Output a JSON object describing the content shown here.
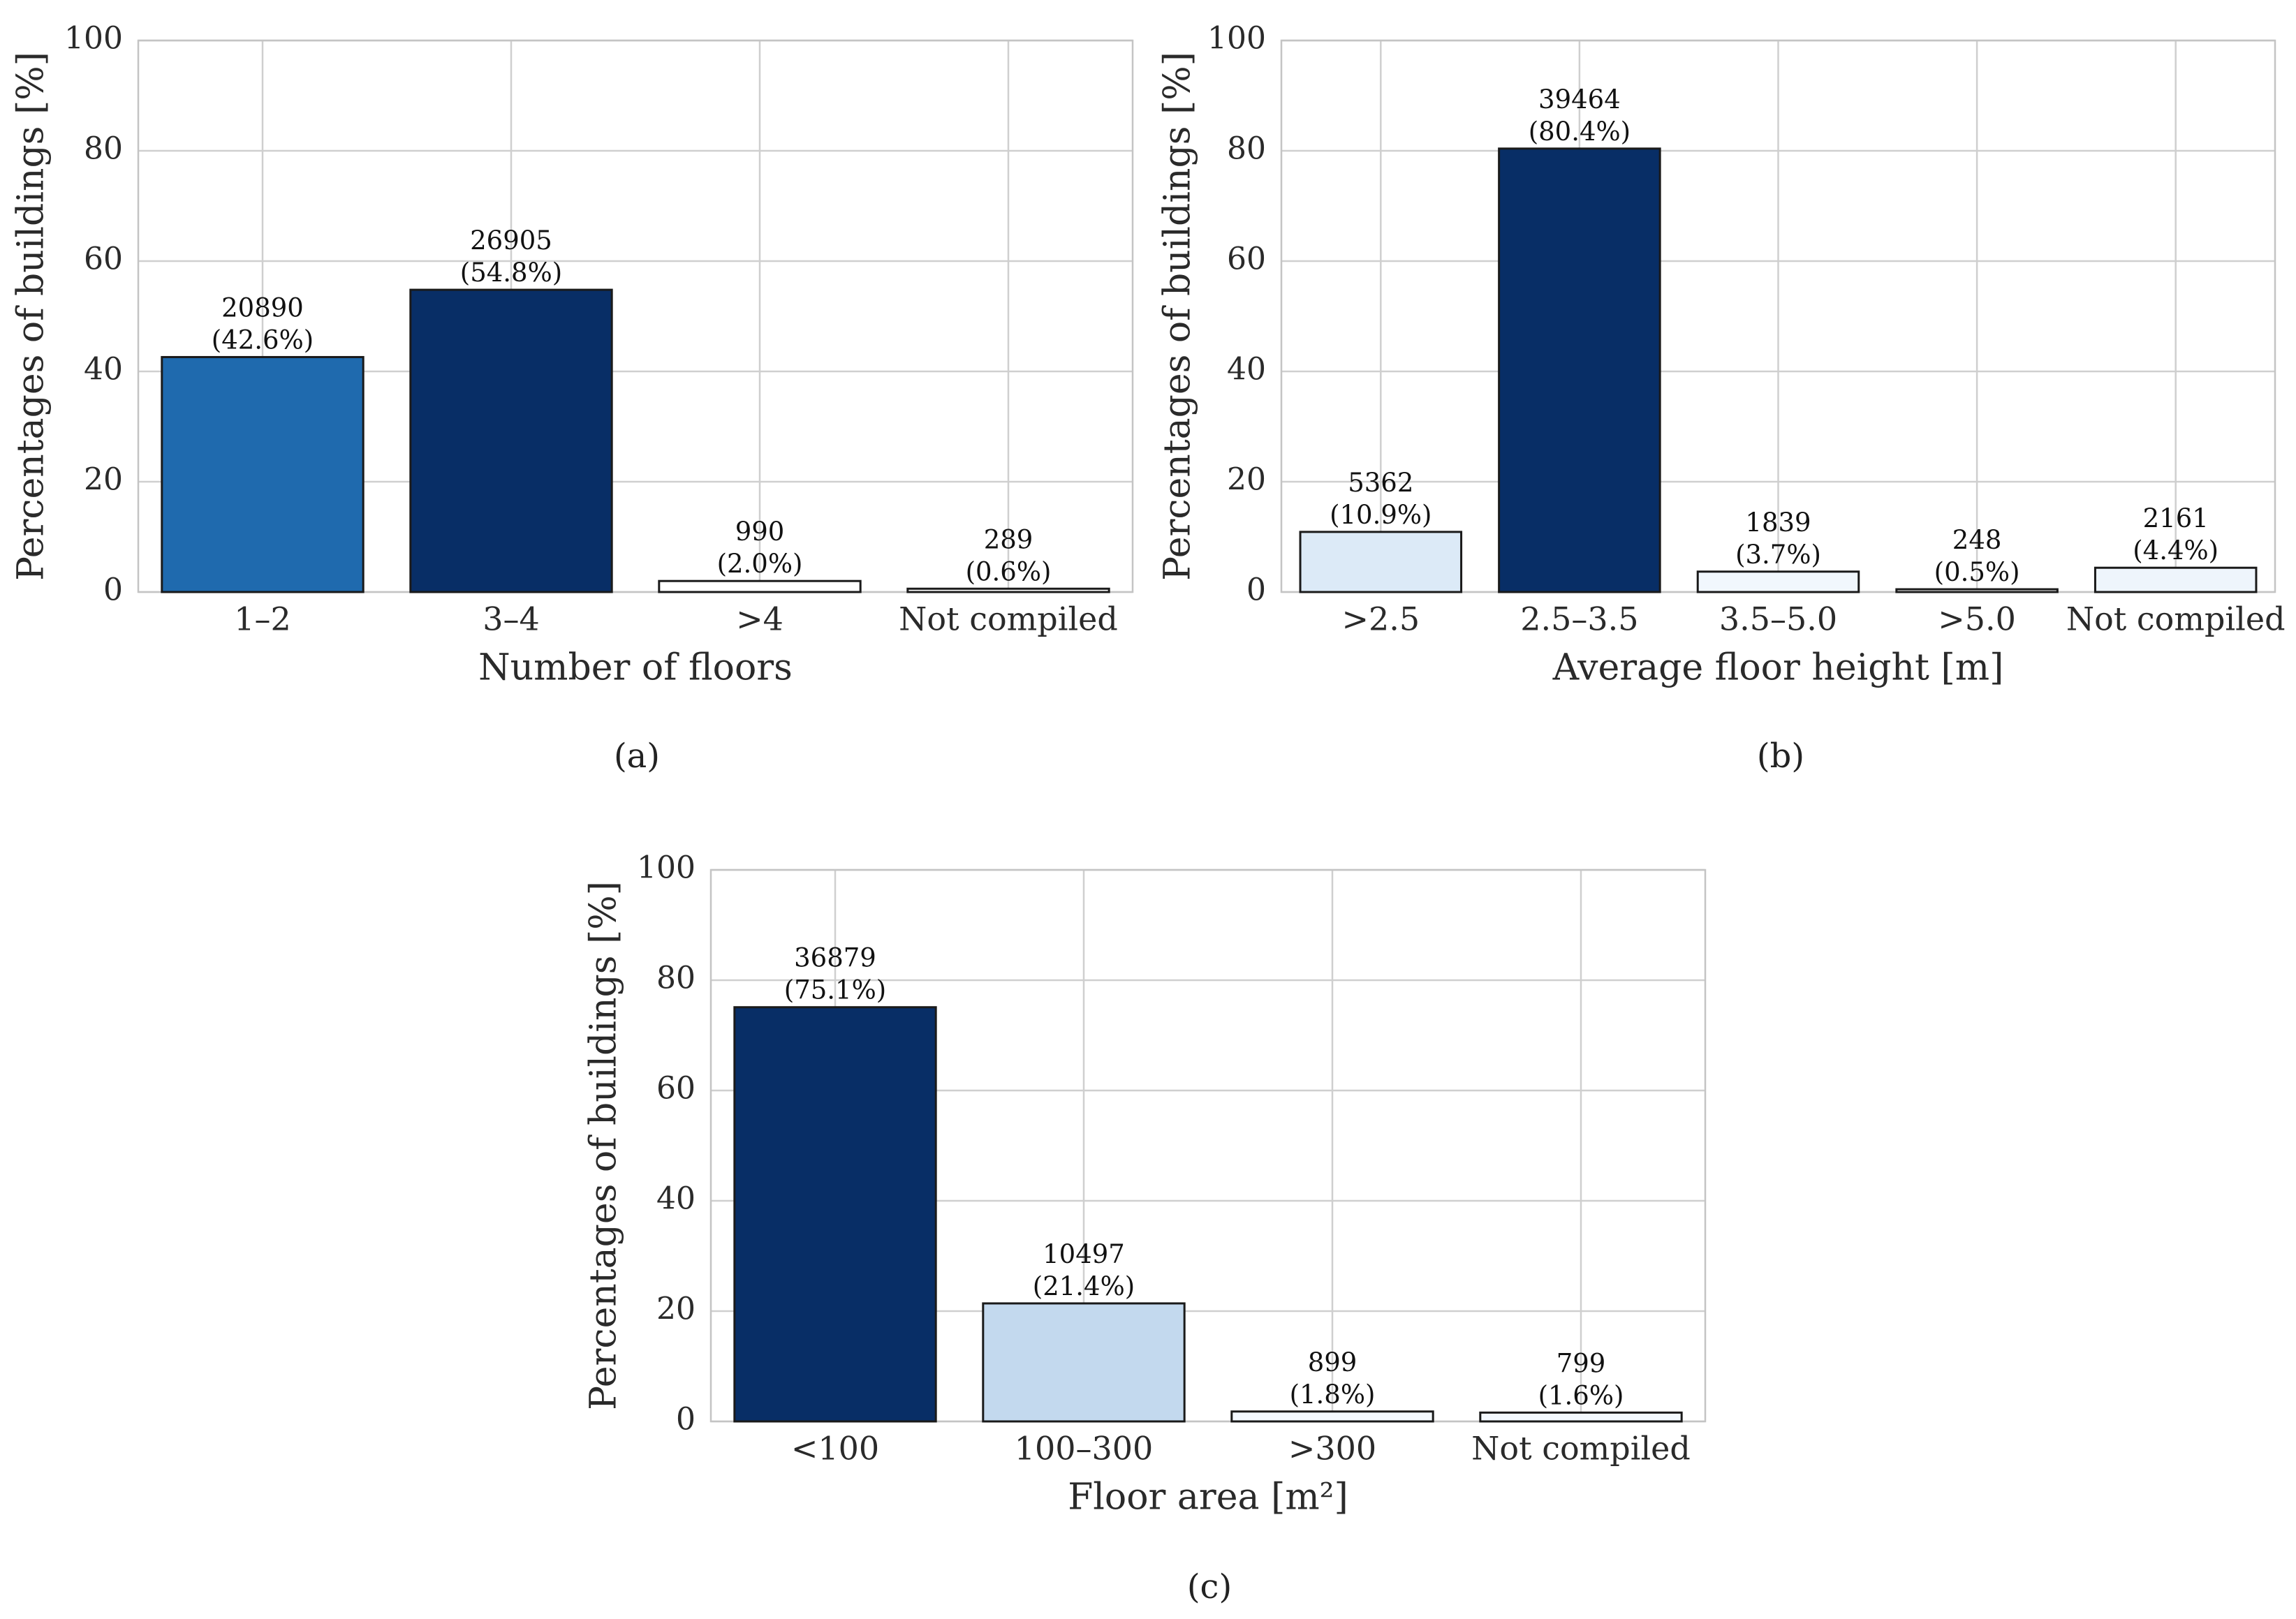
{
  "chart_data": [
    {
      "type": "bar",
      "categories": [
        "1–2",
        "3–4",
        ">4",
        "Not compiled"
      ],
      "values": [
        42.6,
        54.8,
        2.0,
        0.6
      ],
      "counts": [
        "20890",
        "26905",
        "990",
        "289"
      ],
      "percent_labels": [
        "(42.6%)",
        "(54.8%)",
        "(2.0%)",
        "(0.6%)"
      ],
      "colors": [
        "#1f6aae",
        "#082e66",
        "#ffffff",
        "#ffffff"
      ],
      "xlabel": "Number of floors",
      "ylabel": "Percentages of buildings [%]",
      "ylim": [
        0,
        100
      ],
      "yticks": [
        "0",
        "20",
        "40",
        "60",
        "80",
        "100"
      ],
      "grid": true,
      "caption": "(a)"
    },
    {
      "type": "bar",
      "categories": [
        ">2.5",
        "2.5–3.5",
        "3.5–5.0",
        ">5.0",
        "Not compiled"
      ],
      "values": [
        10.9,
        80.4,
        3.7,
        0.5,
        4.4
      ],
      "counts": [
        "5362",
        "39464",
        "1839",
        "248",
        "2161"
      ],
      "percent_labels": [
        "(10.9%)",
        "(80.4%)",
        "(3.7%)",
        "(0.5%)",
        "(4.4%)"
      ],
      "colors": [
        "#dceaf7",
        "#082e66",
        "#f1f7fd",
        "#ffffff",
        "#eef5fc"
      ],
      "xlabel": "Average floor height [m]",
      "ylabel": "Percentages of buildings [%]",
      "ylim": [
        0,
        100
      ],
      "yticks": [
        "0",
        "20",
        "40",
        "60",
        "80",
        "100"
      ],
      "grid": true,
      "caption": "(b)"
    },
    {
      "type": "bar",
      "categories": [
        "<100",
        "100–300",
        ">300",
        "Not compiled"
      ],
      "values": [
        75.1,
        21.4,
        1.8,
        1.6
      ],
      "counts": [
        "36879",
        "10497",
        "899",
        "799"
      ],
      "percent_labels": [
        "(75.1%)",
        "(21.4%)",
        "(1.8%)",
        "(1.6%)"
      ],
      "colors": [
        "#082e66",
        "#c3d9ee",
        "#f4f9fe",
        "#f4f9fe"
      ],
      "xlabel": "Floor area [m²]",
      "ylabel": "Percentages of buildings [%]",
      "ylim": [
        0,
        100
      ],
      "yticks": [
        "0",
        "20",
        "40",
        "60",
        "80",
        "100"
      ],
      "grid": true,
      "caption": "(c)"
    }
  ]
}
